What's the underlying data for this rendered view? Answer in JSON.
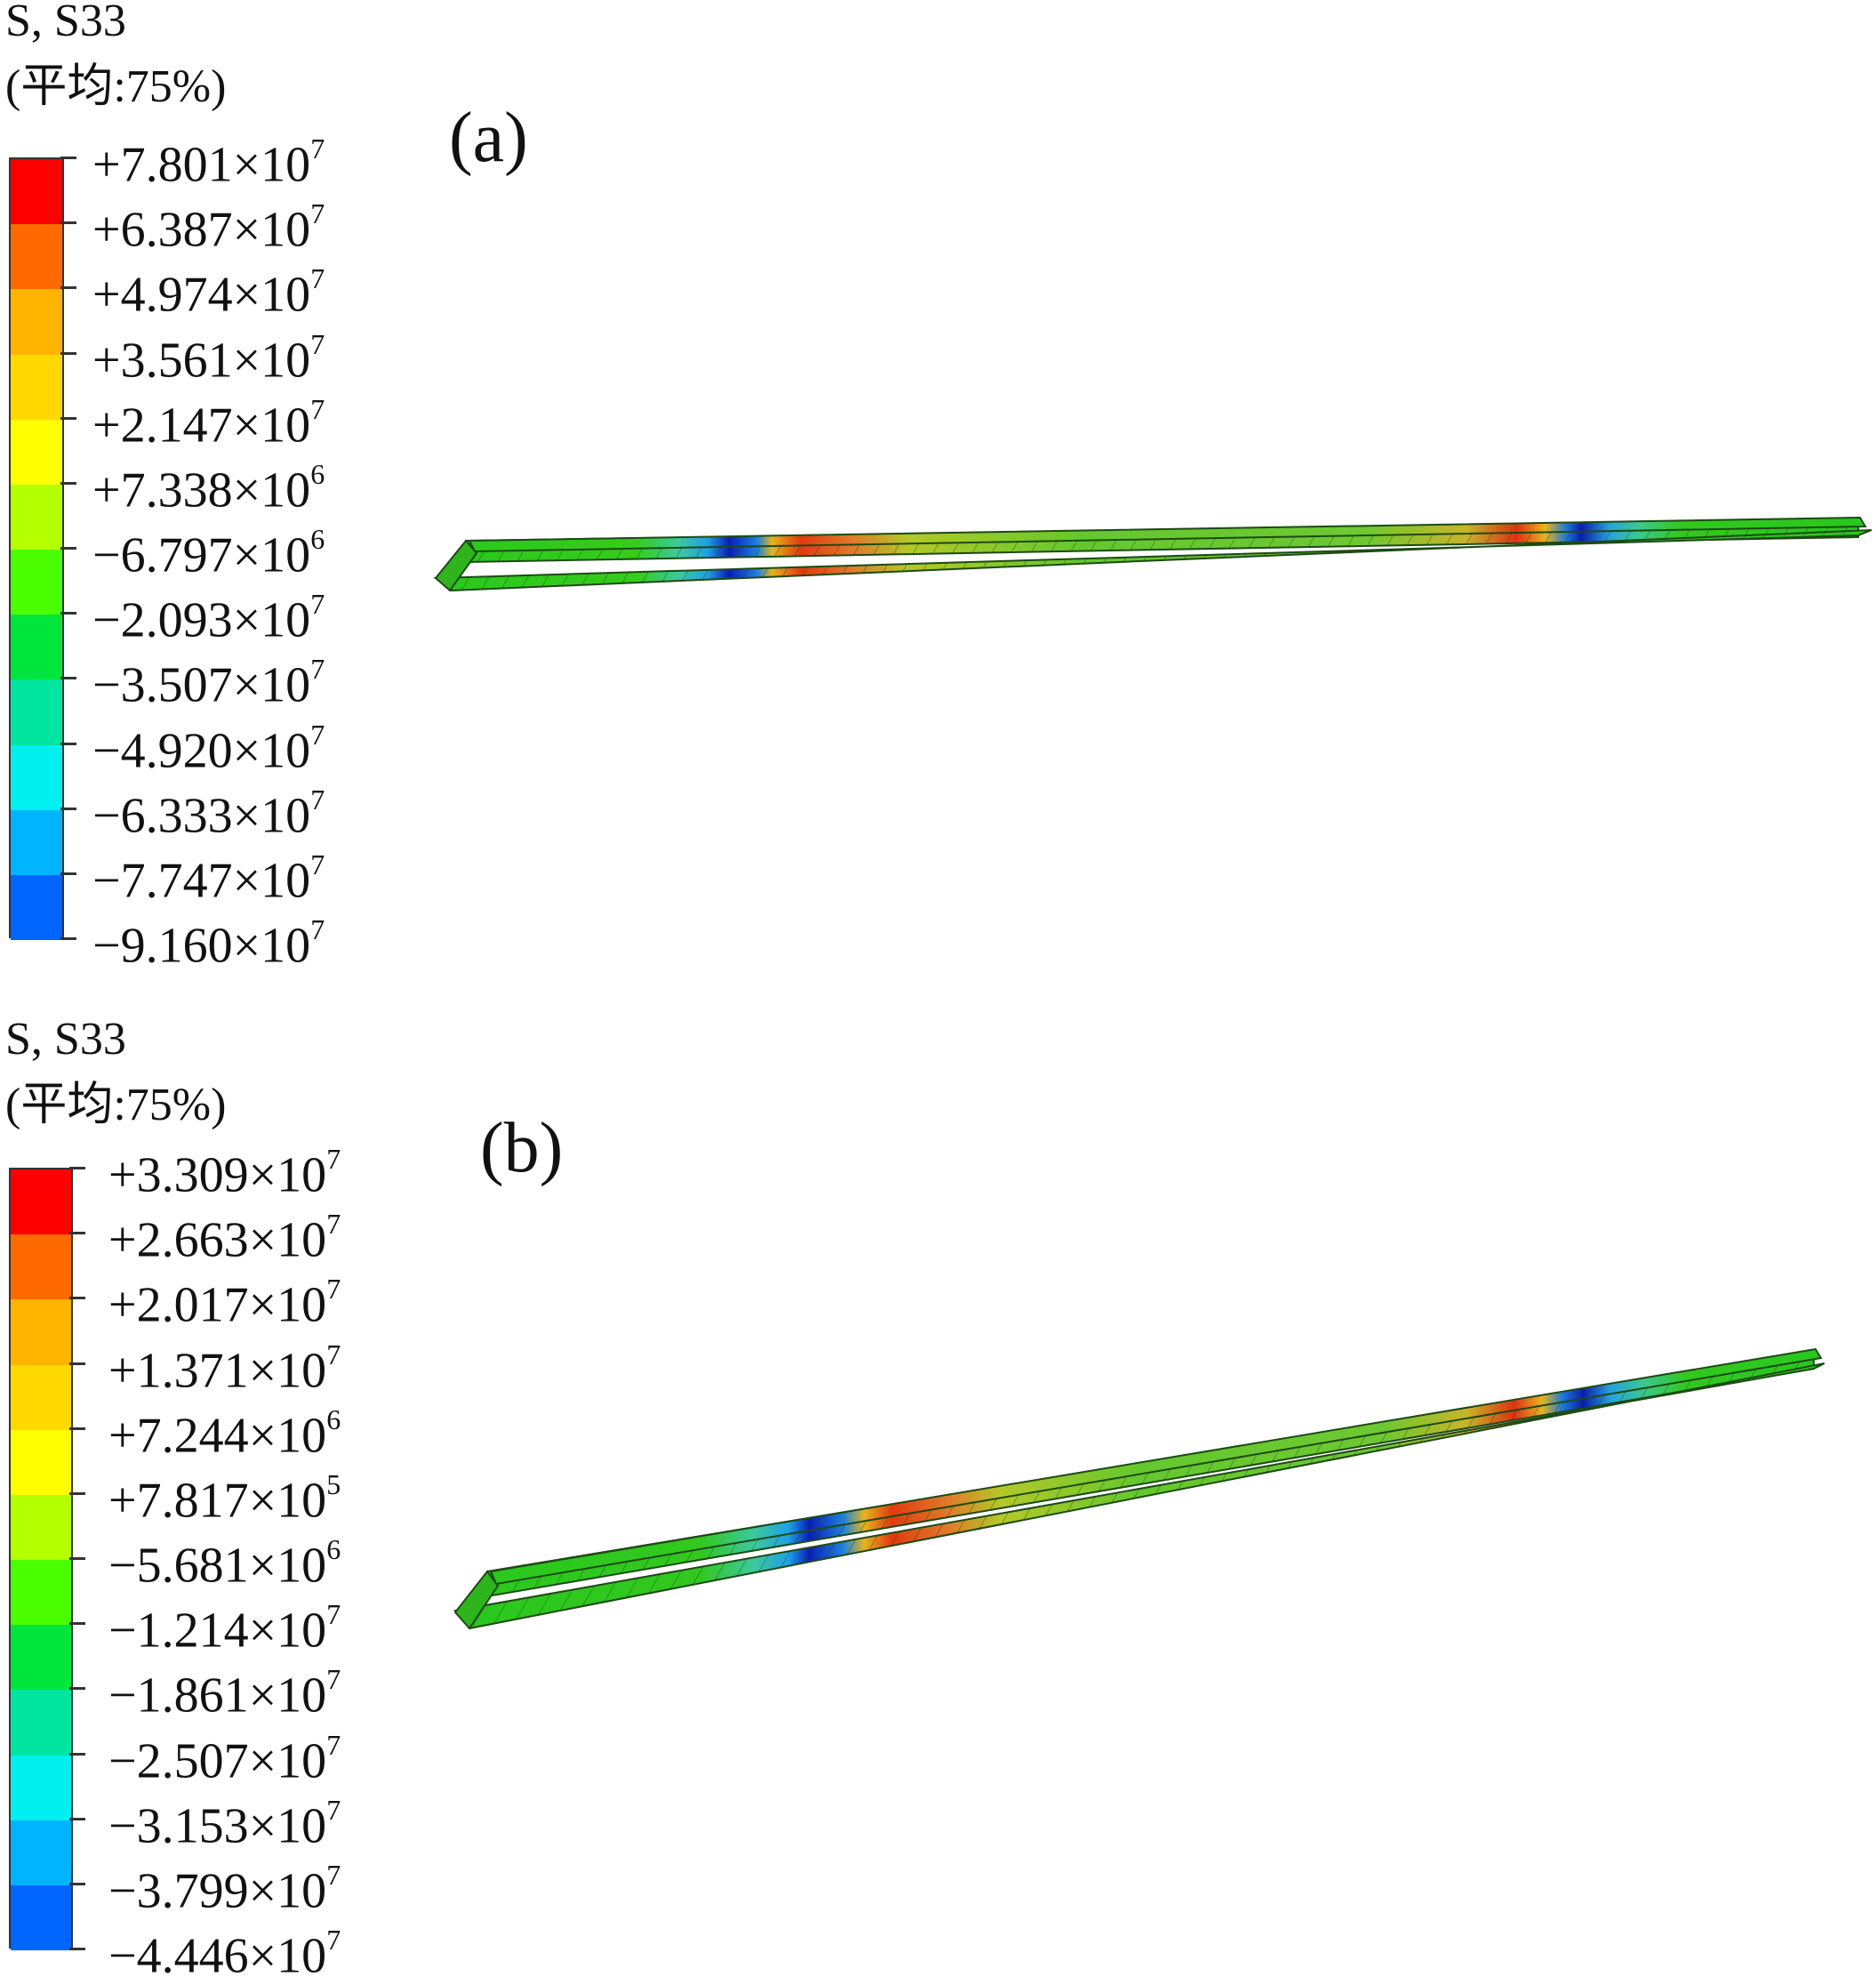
{
  "panels": [
    {
      "id": "a",
      "label": "(a)",
      "variable": "S, S33",
      "averaging": "(平均:75%)",
      "legend": [
        {
          "mantissa": "+7.801",
          "times": "×10",
          "exp": "7"
        },
        {
          "mantissa": "+6.387",
          "times": "×10",
          "exp": "7"
        },
        {
          "mantissa": "+4.974",
          "times": "×10",
          "exp": "7"
        },
        {
          "mantissa": "+3.561",
          "times": "×10",
          "exp": "7"
        },
        {
          "mantissa": "+2.147",
          "times": "×10",
          "exp": "7"
        },
        {
          "mantissa": "+7.338",
          "times": "×10",
          "exp": "6"
        },
        {
          "mantissa": "−6.797",
          "times": "×10",
          "exp": "6"
        },
        {
          "mantissa": "−2.093",
          "times": "×10",
          "exp": "7"
        },
        {
          "mantissa": "−3.507",
          "times": "×10",
          "exp": "7"
        },
        {
          "mantissa": "−4.920",
          "times": "×10",
          "exp": "7"
        },
        {
          "mantissa": "−6.333",
          "times": "×10",
          "exp": "7"
        },
        {
          "mantissa": "−7.747",
          "times": "×10",
          "exp": "7"
        },
        {
          "mantissa": "−9.160",
          "times": "×10",
          "exp": "7"
        }
      ]
    },
    {
      "id": "b",
      "label": "(b)",
      "variable": "S, S33",
      "averaging": "(平均:75%)",
      "legend": [
        {
          "mantissa": "+3.309",
          "times": "×10",
          "exp": "7"
        },
        {
          "mantissa": "+2.663",
          "times": "×10",
          "exp": "7"
        },
        {
          "mantissa": "+2.017",
          "times": "×10",
          "exp": "7"
        },
        {
          "mantissa": "+1.371",
          "times": "×10",
          "exp": "7"
        },
        {
          "mantissa": "+7.244",
          "times": "×10",
          "exp": "6"
        },
        {
          "mantissa": "+7.817",
          "times": "×10",
          "exp": "5"
        },
        {
          "mantissa": "−5.681",
          "times": "×10",
          "exp": "6"
        },
        {
          "mantissa": "−1.214",
          "times": "×10",
          "exp": "7"
        },
        {
          "mantissa": "−1.861",
          "times": "×10",
          "exp": "7"
        },
        {
          "mantissa": "−2.507",
          "times": "×10",
          "exp": "7"
        },
        {
          "mantissa": "−3.153",
          "times": "×10",
          "exp": "7"
        },
        {
          "mantissa": "−3.799",
          "times": "×10",
          "exp": "7"
        },
        {
          "mantissa": "−4.446",
          "times": "×10",
          "exp": "7"
        }
      ]
    }
  ],
  "colormap": [
    "#ff0000",
    "#ff6a00",
    "#ffb400",
    "#ffd800",
    "#ffff00",
    "#b4ff00",
    "#4cff00",
    "#00e63c",
    "#00e6a0",
    "#00f0f0",
    "#00b4ff",
    "#0064ff",
    "#0000ff"
  ]
}
